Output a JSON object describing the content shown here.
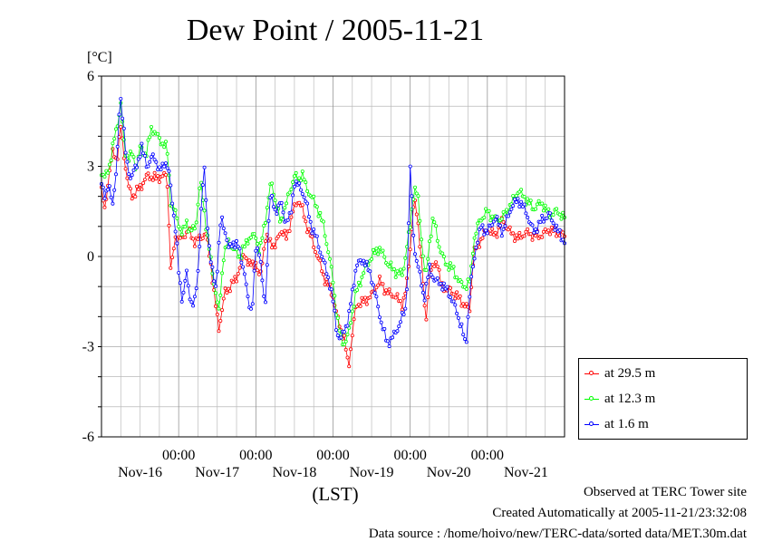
{
  "title": "Dew Point / 2005-11-21",
  "unit_label": "[°C]",
  "footer": {
    "line1": "Observed at TERC Tower site",
    "line2": "Created Automatically at 2005-11-21/23:32:08",
    "line3": "Data source : /home/hoivo/new/TERC-data/sorted  data/MET.30m.dat"
  },
  "chart_data": {
    "type": "line",
    "title": "Dew Point / 2005-11-21",
    "ylabel": "[°C]",
    "xlabel": "(LST)",
    "ylim": [
      -6,
      6
    ],
    "yticks": [
      6,
      3,
      0,
      -3,
      -6
    ],
    "xlim": [
      -1.0,
      5.0
    ],
    "xtick_label_time": "00:00",
    "xticks": [
      {
        "x": 0,
        "time": "00:00",
        "date": "Nov-17"
      },
      {
        "x": 1,
        "time": "00:00",
        "date": "Nov-18"
      },
      {
        "x": 2,
        "time": "00:00",
        "date": "Nov-19"
      },
      {
        "x": 3,
        "time": "00:00",
        "date": "Nov-20"
      },
      {
        "x": 4,
        "time": "00:00",
        "date": "Nov-21"
      }
    ],
    "day_labels": [
      {
        "x": -0.5,
        "label": "Nov-16"
      },
      {
        "x": 0.5,
        "label": "Nov-17"
      },
      {
        "x": 1.5,
        "label": "Nov-18"
      },
      {
        "x": 2.5,
        "label": "Nov-19"
      },
      {
        "x": 3.5,
        "label": "Nov-20"
      },
      {
        "x": 4.5,
        "label": "Nov-21"
      }
    ],
    "grid": true,
    "legend_position": "bottom-right outside",
    "x_unit": "days relative to Nov-17 00:00 LST",
    "series": [
      {
        "name": "at 29.5 m",
        "color": "#ff0000",
        "knots": [
          [
            -1.0,
            2.2
          ],
          [
            -0.96,
            1.5
          ],
          [
            -0.9,
            2.8
          ],
          [
            -0.85,
            3.5
          ],
          [
            -0.8,
            3.2
          ],
          [
            -0.75,
            4.3
          ],
          [
            -0.7,
            3.2
          ],
          [
            -0.65,
            2.3
          ],
          [
            -0.6,
            2.0
          ],
          [
            -0.5,
            2.3
          ],
          [
            -0.4,
            2.7
          ],
          [
            -0.3,
            2.6
          ],
          [
            -0.15,
            2.7
          ],
          [
            -0.1,
            -0.6
          ],
          [
            -0.05,
            0.6
          ],
          [
            0.05,
            0.6
          ],
          [
            0.12,
            0.9
          ],
          [
            0.2,
            0.5
          ],
          [
            0.28,
            0.6
          ],
          [
            0.35,
            0.8
          ],
          [
            0.42,
            -0.3
          ],
          [
            0.47,
            -1.5
          ],
          [
            0.52,
            -2.4
          ],
          [
            0.6,
            -1.2
          ],
          [
            0.67,
            -1.0
          ],
          [
            0.75,
            -0.7
          ],
          [
            0.85,
            0.1
          ],
          [
            0.92,
            -0.3
          ],
          [
            1.0,
            -0.2
          ],
          [
            1.05,
            -0.8
          ],
          [
            1.12,
            0.6
          ],
          [
            1.2,
            0.5
          ],
          [
            1.25,
            0.3
          ],
          [
            1.32,
            0.9
          ],
          [
            1.4,
            0.6
          ],
          [
            1.48,
            1.5
          ],
          [
            1.55,
            1.9
          ],
          [
            1.6,
            1.6
          ],
          [
            1.65,
            1.1
          ],
          [
            1.72,
            0.6
          ],
          [
            1.8,
            0.0
          ],
          [
            1.9,
            -0.8
          ],
          [
            1.95,
            -1.0
          ],
          [
            2.0,
            -1.3
          ],
          [
            2.05,
            -2.0
          ],
          [
            2.1,
            -2.4
          ],
          [
            2.15,
            -2.8
          ],
          [
            2.2,
            -3.7
          ],
          [
            2.25,
            -2.6
          ],
          [
            2.3,
            -1.6
          ],
          [
            2.4,
            -1.5
          ],
          [
            2.5,
            -1.3
          ],
          [
            2.6,
            -0.8
          ],
          [
            2.7,
            -1.2
          ],
          [
            2.8,
            -1.3
          ],
          [
            2.9,
            -1.6
          ],
          [
            2.95,
            -1.1
          ],
          [
            3.0,
            0.3
          ],
          [
            3.05,
            1.9
          ],
          [
            3.1,
            1.2
          ],
          [
            3.15,
            -0.2
          ],
          [
            3.2,
            -2.3
          ],
          [
            3.25,
            -0.6
          ],
          [
            3.35,
            -0.1
          ],
          [
            3.4,
            -1.0
          ],
          [
            3.5,
            -1.1
          ],
          [
            3.6,
            -1.3
          ],
          [
            3.7,
            -1.6
          ],
          [
            3.77,
            -1.8
          ],
          [
            3.82,
            0.1
          ],
          [
            3.9,
            0.5
          ],
          [
            4.0,
            0.9
          ],
          [
            4.1,
            0.7
          ],
          [
            4.2,
            1.2
          ],
          [
            4.3,
            0.8
          ],
          [
            4.4,
            0.6
          ],
          [
            4.5,
            0.8
          ],
          [
            4.6,
            0.7
          ],
          [
            4.7,
            0.7
          ],
          [
            4.8,
            0.9
          ],
          [
            4.9,
            0.8
          ],
          [
            5.0,
            0.7
          ]
        ]
      },
      {
        "name": "at 12.3 m",
        "color": "#00ff00",
        "knots": [
          [
            -1.0,
            2.8
          ],
          [
            -0.95,
            2.6
          ],
          [
            -0.9,
            3.0
          ],
          [
            -0.85,
            3.7
          ],
          [
            -0.8,
            4.3
          ],
          [
            -0.75,
            5.1
          ],
          [
            -0.7,
            3.5
          ],
          [
            -0.65,
            3.3
          ],
          [
            -0.6,
            3.4
          ],
          [
            -0.55,
            2.9
          ],
          [
            -0.5,
            3.6
          ],
          [
            -0.42,
            3.4
          ],
          [
            -0.35,
            4.3
          ],
          [
            -0.25,
            3.9
          ],
          [
            -0.15,
            3.6
          ],
          [
            -0.1,
            1.7
          ],
          [
            -0.05,
            1.5
          ],
          [
            0.05,
            0.7
          ],
          [
            0.1,
            1.2
          ],
          [
            0.15,
            0.8
          ],
          [
            0.22,
            1.0
          ],
          [
            0.28,
            2.5
          ],
          [
            0.32,
            1.8
          ],
          [
            0.38,
            0.5
          ],
          [
            0.45,
            -0.7
          ],
          [
            0.52,
            -1.9
          ],
          [
            0.58,
            0.0
          ],
          [
            0.65,
            0.5
          ],
          [
            0.72,
            0.2
          ],
          [
            0.8,
            0.0
          ],
          [
            0.9,
            0.6
          ],
          [
            1.0,
            0.7
          ],
          [
            1.05,
            0.1
          ],
          [
            1.12,
            1.2
          ],
          [
            1.2,
            2.5
          ],
          [
            1.25,
            1.9
          ],
          [
            1.32,
            1.1
          ],
          [
            1.4,
            1.8
          ],
          [
            1.5,
            2.7
          ],
          [
            1.55,
            2.5
          ],
          [
            1.6,
            2.8
          ],
          [
            1.65,
            2.3
          ],
          [
            1.72,
            2.0
          ],
          [
            1.8,
            1.6
          ],
          [
            1.88,
            1.0
          ],
          [
            1.95,
            0.0
          ],
          [
            2.0,
            -0.8
          ],
          [
            2.05,
            -2.0
          ],
          [
            2.1,
            -2.7
          ],
          [
            2.15,
            -2.9
          ],
          [
            2.2,
            -2.6
          ],
          [
            2.25,
            -1.8
          ],
          [
            2.3,
            -1.2
          ],
          [
            2.4,
            -0.5
          ],
          [
            2.5,
            0.0
          ],
          [
            2.6,
            0.3
          ],
          [
            2.7,
            -0.2
          ],
          [
            2.8,
            -0.5
          ],
          [
            2.9,
            -0.6
          ],
          [
            2.95,
            0.2
          ],
          [
            3.0,
            1.0
          ],
          [
            3.05,
            2.3
          ],
          [
            3.1,
            2.0
          ],
          [
            3.15,
            0.5
          ],
          [
            3.2,
            -0.8
          ],
          [
            3.25,
            0.5
          ],
          [
            3.3,
            1.3
          ],
          [
            3.38,
            0.3
          ],
          [
            3.45,
            -0.2
          ],
          [
            3.55,
            -0.4
          ],
          [
            3.65,
            -0.9
          ],
          [
            3.72,
            -1.0
          ],
          [
            3.78,
            -0.8
          ],
          [
            3.82,
            0.5
          ],
          [
            3.9,
            1.2
          ],
          [
            4.0,
            1.5
          ],
          [
            4.1,
            1.2
          ],
          [
            4.2,
            1.3
          ],
          [
            4.3,
            1.7
          ],
          [
            4.4,
            2.2
          ],
          [
            4.5,
            1.9
          ],
          [
            4.6,
            1.6
          ],
          [
            4.7,
            1.8
          ],
          [
            4.8,
            1.4
          ],
          [
            4.9,
            1.5
          ],
          [
            5.0,
            1.3
          ]
        ]
      },
      {
        "name": "at 1.6 m",
        "color": "#0000ff",
        "knots": [
          [
            -1.0,
            2.5
          ],
          [
            -0.95,
            2.0
          ],
          [
            -0.9,
            2.3
          ],
          [
            -0.85,
            1.8
          ],
          [
            -0.8,
            3.0
          ],
          [
            -0.76,
            5.5
          ],
          [
            -0.72,
            4.5
          ],
          [
            -0.68,
            3.2
          ],
          [
            -0.62,
            2.6
          ],
          [
            -0.55,
            3.0
          ],
          [
            -0.48,
            3.6
          ],
          [
            -0.4,
            3.0
          ],
          [
            -0.32,
            3.4
          ],
          [
            -0.25,
            2.8
          ],
          [
            -0.18,
            3.2
          ],
          [
            -0.12,
            2.7
          ],
          [
            -0.08,
            1.8
          ],
          [
            -0.03,
            0.6
          ],
          [
            0.0,
            -0.5
          ],
          [
            0.05,
            -1.5
          ],
          [
            0.1,
            -0.5
          ],
          [
            0.15,
            -1.4
          ],
          [
            0.2,
            -1.7
          ],
          [
            0.25,
            -0.5
          ],
          [
            0.3,
            1.9
          ],
          [
            0.33,
            3.0
          ],
          [
            0.38,
            0.8
          ],
          [
            0.42,
            -0.3
          ],
          [
            0.48,
            -1.0
          ],
          [
            0.55,
            1.3
          ],
          [
            0.6,
            0.9
          ],
          [
            0.65,
            0.2
          ],
          [
            0.7,
            0.5
          ],
          [
            0.78,
            0.3
          ],
          [
            0.85,
            -0.5
          ],
          [
            0.9,
            -1.5
          ],
          [
            0.95,
            -1.8
          ],
          [
            1.0,
            0.2
          ],
          [
            1.05,
            0.2
          ],
          [
            1.12,
            -1.9
          ],
          [
            1.18,
            2.1
          ],
          [
            1.25,
            1.5
          ],
          [
            1.32,
            1.8
          ],
          [
            1.38,
            1.2
          ],
          [
            1.45,
            1.3
          ],
          [
            1.5,
            2.5
          ],
          [
            1.6,
            2.2
          ],
          [
            1.65,
            1.8
          ],
          [
            1.72,
            1.0
          ],
          [
            1.8,
            0.5
          ],
          [
            1.88,
            -0.2
          ],
          [
            1.95,
            -0.8
          ],
          [
            2.0,
            -1.5
          ],
          [
            2.05,
            -2.5
          ],
          [
            2.1,
            -2.8
          ],
          [
            2.15,
            -2.4
          ],
          [
            2.2,
            -2.1
          ],
          [
            2.3,
            -0.3
          ],
          [
            2.4,
            -0.1
          ],
          [
            2.5,
            -0.7
          ],
          [
            2.6,
            -1.9
          ],
          [
            2.7,
            -2.9
          ],
          [
            2.8,
            -2.6
          ],
          [
            2.9,
            -2.0
          ],
          [
            2.95,
            -1.7
          ],
          [
            3.0,
            3.0
          ],
          [
            3.05,
            0.3
          ],
          [
            3.1,
            -0.3
          ],
          [
            3.18,
            -1.4
          ],
          [
            3.25,
            -0.4
          ],
          [
            3.32,
            -0.8
          ],
          [
            3.4,
            -0.9
          ],
          [
            3.5,
            -1.2
          ],
          [
            3.6,
            -1.8
          ],
          [
            3.68,
            -2.5
          ],
          [
            3.72,
            -3.0
          ],
          [
            3.78,
            -1.0
          ],
          [
            3.85,
            0.3
          ],
          [
            3.92,
            1.0
          ],
          [
            4.0,
            0.8
          ],
          [
            4.1,
            1.3
          ],
          [
            4.2,
            0.8
          ],
          [
            4.3,
            1.6
          ],
          [
            4.4,
            1.9
          ],
          [
            4.5,
            1.5
          ],
          [
            4.6,
            0.8
          ],
          [
            4.7,
            1.2
          ],
          [
            4.8,
            1.4
          ],
          [
            4.9,
            0.9
          ],
          [
            5.0,
            0.5
          ]
        ]
      }
    ]
  }
}
